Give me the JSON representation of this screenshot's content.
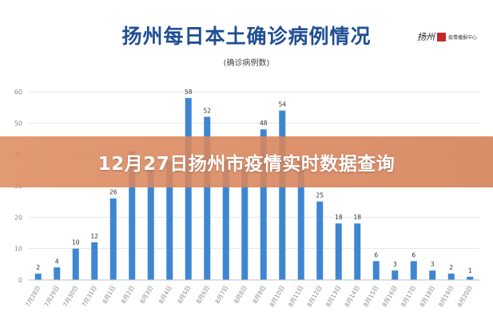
{
  "banner": {
    "text": "12月27日扬州市疫情实时数据查询"
  },
  "logo": {
    "brand": "扬州",
    "org": "疫情播报中心"
  },
  "colors": {
    "bar": "#3e86d2",
    "title": "#1f4e93",
    "banner": "#d9885e"
  },
  "chart_data": {
    "type": "bar",
    "title": "扬州每日本土确诊病例情况",
    "subtitle": "(确诊病例数)",
    "xlabel": "",
    "ylabel": "",
    "ylim": [
      0,
      60
    ],
    "yticks": [
      0,
      10,
      20,
      30,
      40,
      50,
      60
    ],
    "grid": true,
    "categories": [
      "7月28日",
      "7月29日",
      "7月30日",
      "7月31日",
      "8月1日",
      "8月2日",
      "8月3日",
      "8月4日",
      "8月5日",
      "8月6日",
      "8月7日",
      "8月8日",
      "8月9日",
      "8月10日",
      "8月11日",
      "8月12日",
      "8月13日",
      "8月14日",
      "8月15日",
      "8月16日",
      "8月17日",
      "8月18日",
      "8月19日",
      "8月20日"
    ],
    "values": [
      2,
      4,
      10,
      12,
      26,
      41,
      35,
      38,
      58,
      52,
      38,
      36,
      48,
      54,
      38,
      25,
      18,
      18,
      6,
      3,
      6,
      3,
      2,
      1
    ],
    "data_labels": [
      "2",
      "4",
      "10",
      "12",
      "26",
      "",
      "",
      "",
      "58",
      "52",
      "",
      "",
      "48",
      "54",
      "",
      "25",
      "18",
      "18",
      "6",
      "3",
      "6",
      "3",
      "2",
      "1"
    ]
  }
}
